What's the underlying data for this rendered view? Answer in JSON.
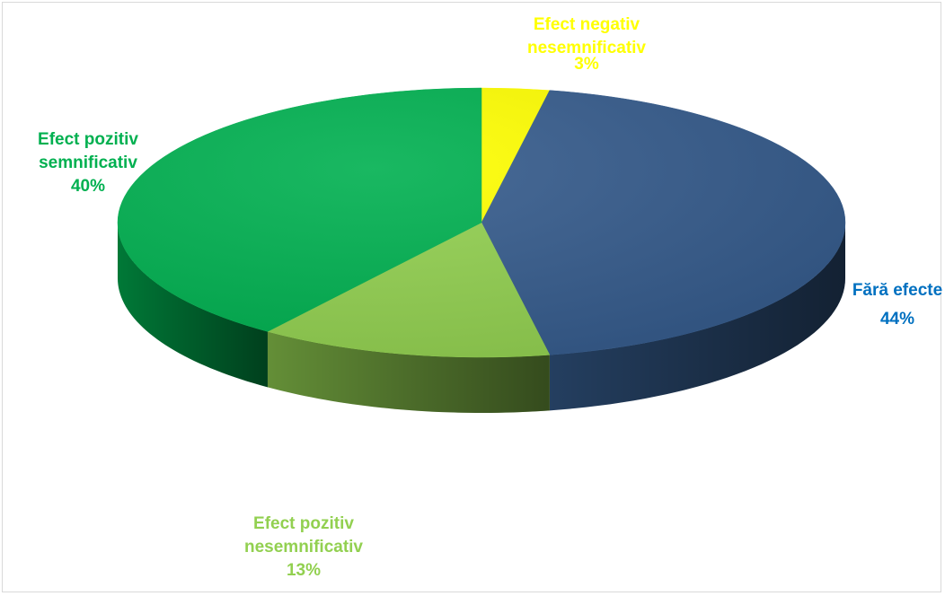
{
  "chart_data": {
    "type": "pie",
    "title": "",
    "style": "3d",
    "categories": [
      "Efect negativ nesemnificativ",
      "Fără efecte",
      "Efect pozitiv nesemnificativ",
      "Efect pozitiv semnificativ"
    ],
    "values": [
      3,
      44,
      13,
      40
    ],
    "unit": "%",
    "colors": [
      "#ffff00",
      "#355b8c",
      "#92d050",
      "#00b050"
    ],
    "labels": [
      {
        "line1": "Efect negativ",
        "line2": "nesemnificativ",
        "value": "3%",
        "color": "#ffff00"
      },
      {
        "line1": "Fără efecte",
        "line2": "",
        "value": "44%",
        "color": "#0070c0"
      },
      {
        "line1": "Efect pozitiv",
        "line2": "nesemnificativ",
        "value": "13%",
        "color": "#92d050"
      },
      {
        "line1": "Efect pozitiv",
        "line2": "semnificativ",
        "value": "40%",
        "color": "#00b050"
      }
    ]
  }
}
